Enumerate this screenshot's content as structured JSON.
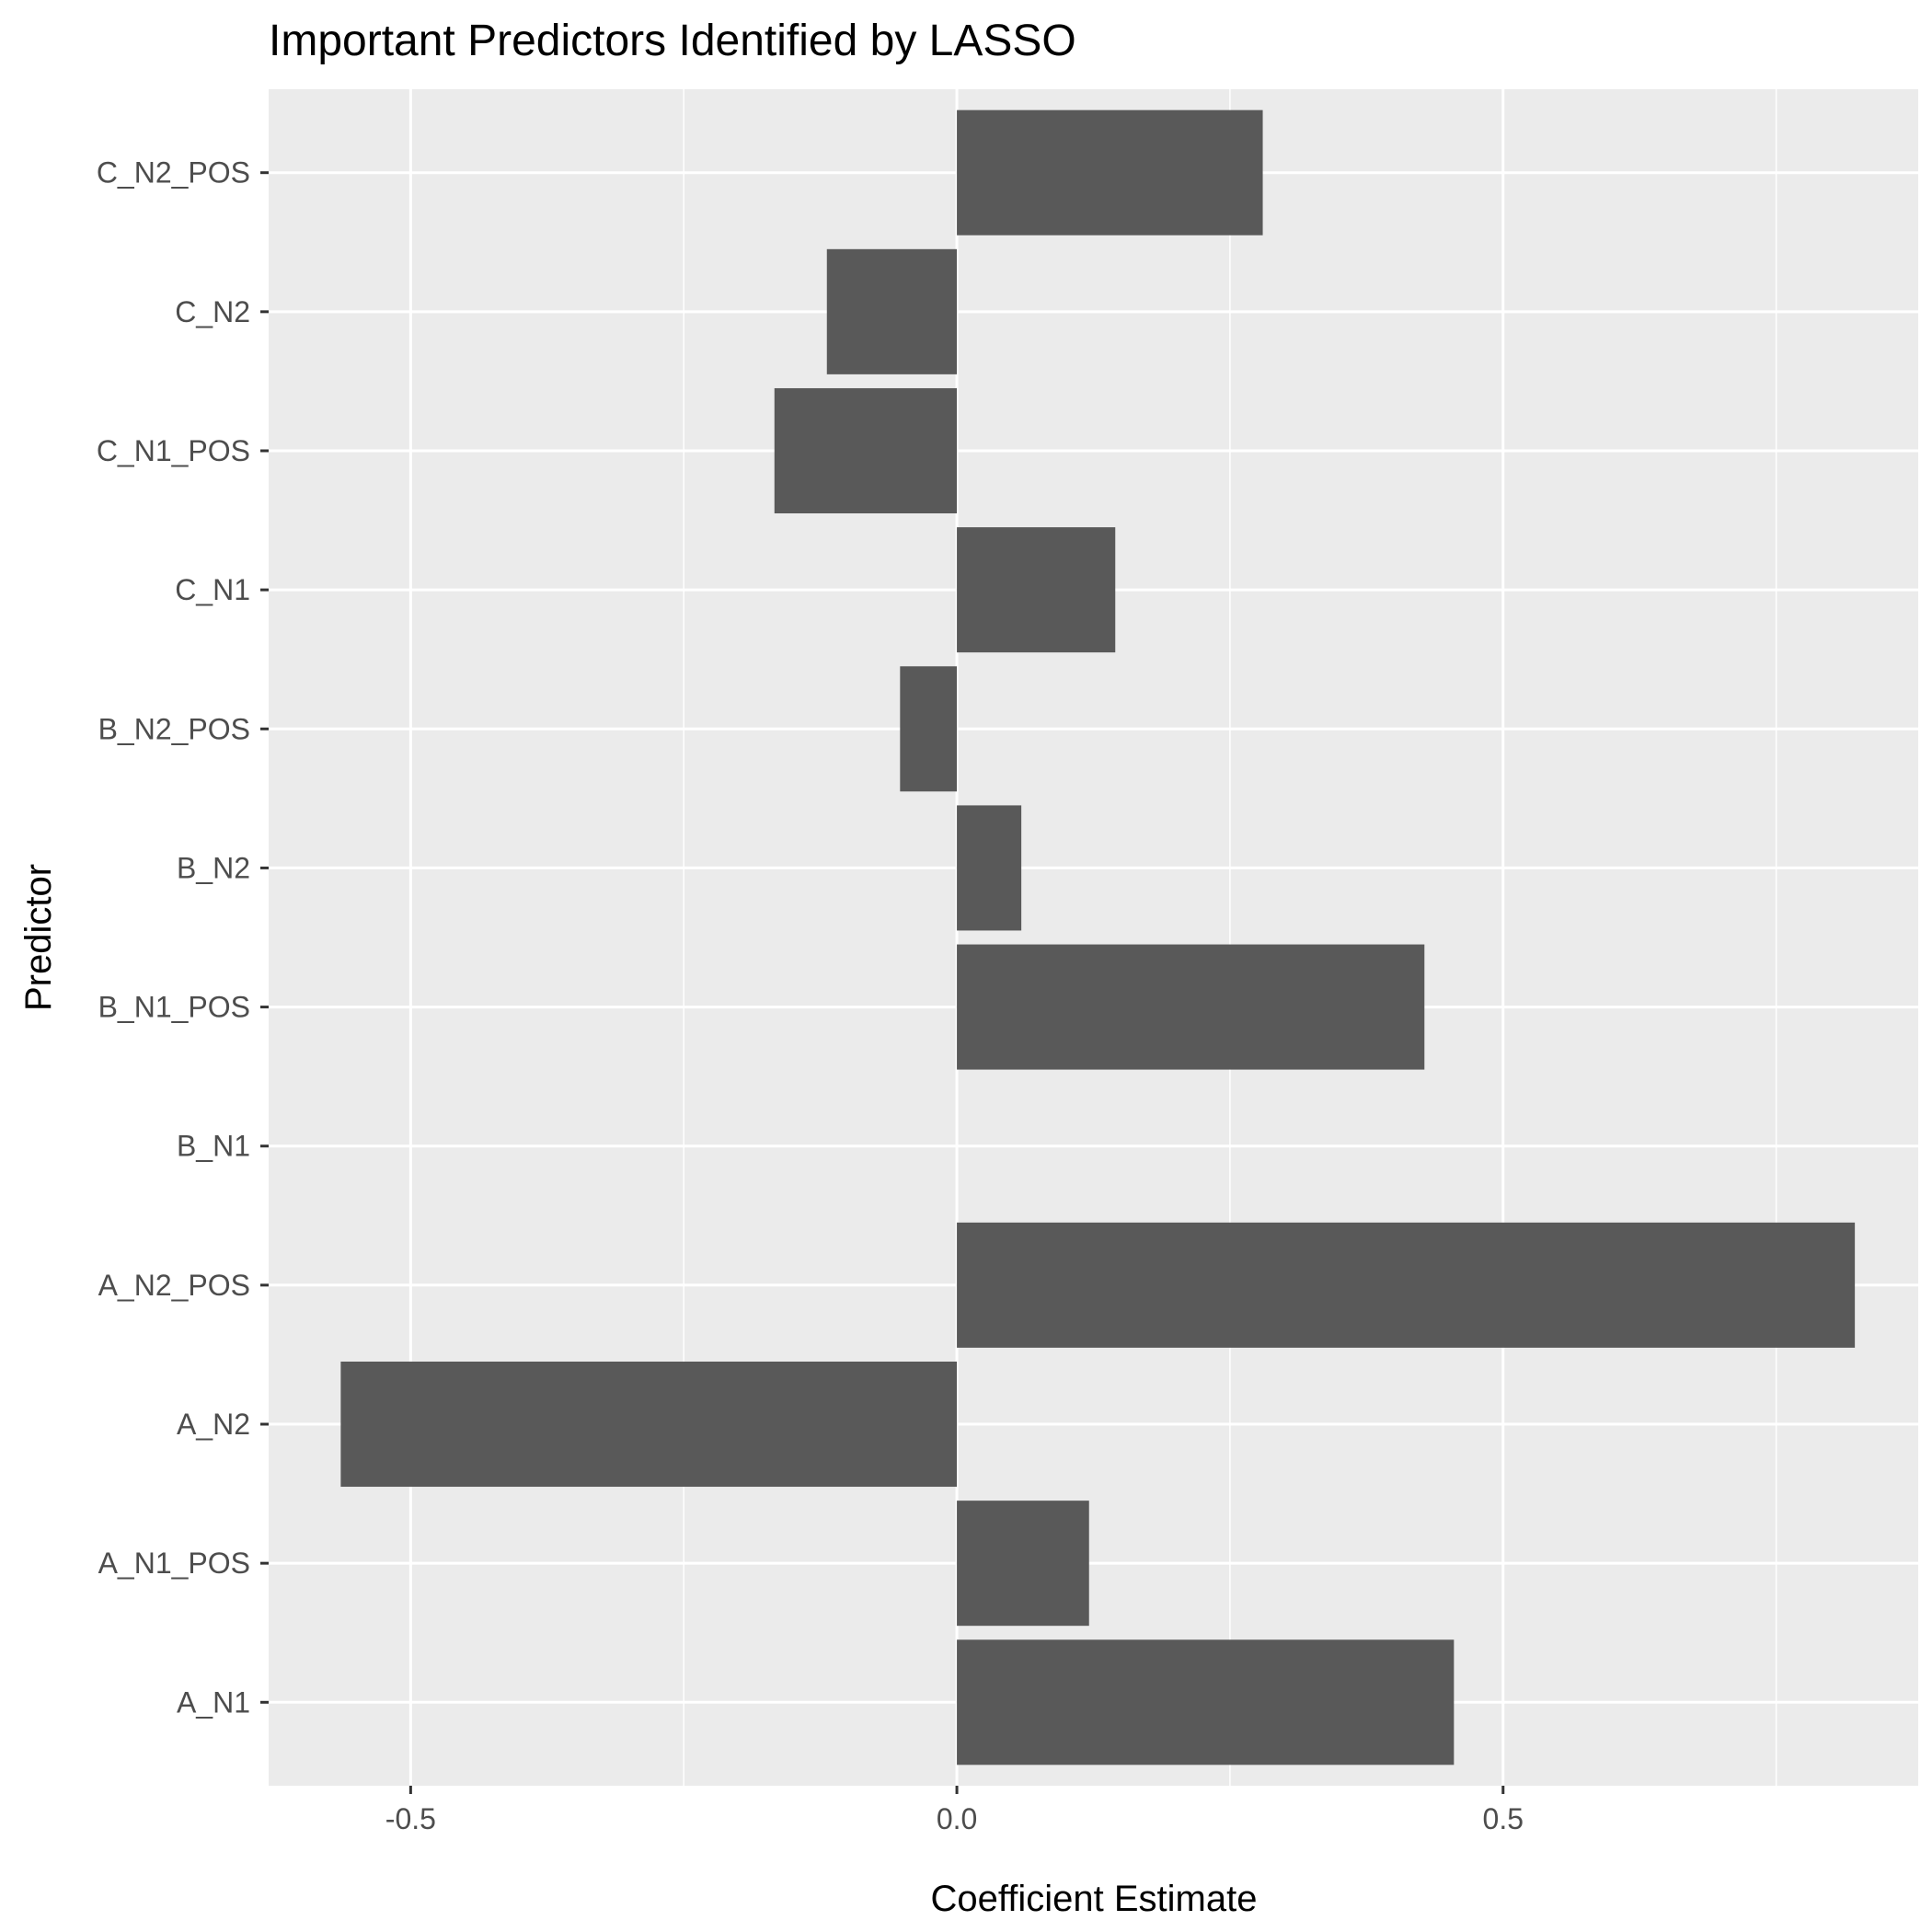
{
  "chart_data": {
    "type": "bar",
    "orientation": "horizontal",
    "title": "Important Predictors Identified by LASSO",
    "xlabel": "Coefficient Estimate",
    "ylabel": "Predictor",
    "categories": [
      "A_N1",
      "A_N1_POS",
      "A_N2",
      "A_N2_POS",
      "B_N1",
      "B_N1_POS",
      "B_N2",
      "B_N2_POS",
      "C_N1",
      "C_N1_POS",
      "C_N2",
      "C_N2_POS"
    ],
    "values": [
      0.455,
      0.121,
      -0.564,
      0.822,
      0.0,
      0.428,
      0.059,
      -0.052,
      0.145,
      -0.167,
      -0.119,
      0.28
    ],
    "xlim": [
      -0.63,
      0.88
    ],
    "xticks": [
      -0.5,
      0.0,
      0.5
    ],
    "xtick_labels": [
      "-0.5",
      "0.0",
      "0.5"
    ],
    "grid": true,
    "legend": "none",
    "colors": {
      "bar": "#595959",
      "panel": "#ebebeb",
      "grid": "#ffffff"
    }
  }
}
